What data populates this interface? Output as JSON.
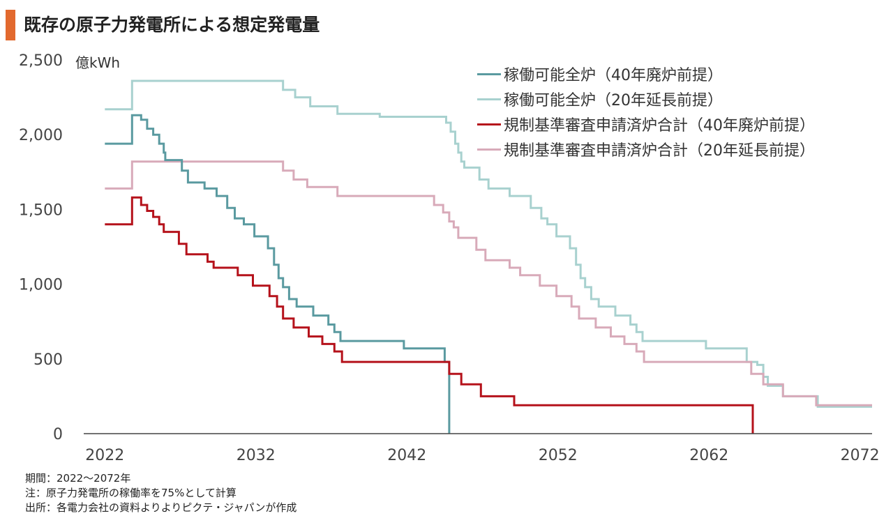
{
  "title": "既存の原子力発電所による想定発電量",
  "colors": {
    "accent": "#e2692e",
    "axis": "#444444"
  },
  "notes": [
    "期間：2022～2072年",
    "注：原子力発電所の稼働率を75%として計算",
    "出所：各電力会社の資料よりよりピクテ・ジャパンが作成"
  ],
  "chart_data": {
    "type": "line",
    "step": true,
    "unit_label": "億kWh",
    "xlim": [
      2020.6,
      2072.8
    ],
    "ylim": [
      0,
      2500
    ],
    "y_ticks": [
      0,
      500,
      1000,
      1500,
      2000,
      2500
    ],
    "y_tick_labels": [
      "0",
      "500",
      "1,000",
      "1,500",
      "2,000",
      "2,500"
    ],
    "x_ticks": [
      2022,
      2032,
      2042,
      2052,
      2062,
      2072
    ],
    "x_tick_labels": [
      "2022",
      "2032",
      "2042",
      "2052",
      "2062",
      "2072"
    ],
    "legend_position": "top-right",
    "series": [
      {
        "name": "稼働可能全炉（40年廃炉前提）",
        "color": "#5a9aa0",
        "points": [
          [
            2022,
            1940
          ],
          [
            2023.8,
            1940
          ],
          [
            2023.8,
            2130
          ],
          [
            2024.4,
            2130
          ],
          [
            2024.4,
            2100
          ],
          [
            2024.8,
            2100
          ],
          [
            2024.8,
            2040
          ],
          [
            2025.2,
            2040
          ],
          [
            2025.2,
            2000
          ],
          [
            2025.6,
            2000
          ],
          [
            2025.6,
            1940
          ],
          [
            2025.9,
            1940
          ],
          [
            2025.9,
            1880
          ],
          [
            2026,
            1880
          ],
          [
            2026,
            1830
          ],
          [
            2027.1,
            1830
          ],
          [
            2027.1,
            1760
          ],
          [
            2027.5,
            1760
          ],
          [
            2027.5,
            1680
          ],
          [
            2028.6,
            1680
          ],
          [
            2028.6,
            1640
          ],
          [
            2029.4,
            1640
          ],
          [
            2029.4,
            1590
          ],
          [
            2030.1,
            1590
          ],
          [
            2030.1,
            1510
          ],
          [
            2030.6,
            1510
          ],
          [
            2030.6,
            1440
          ],
          [
            2031.2,
            1440
          ],
          [
            2031.2,
            1400
          ],
          [
            2031.9,
            1400
          ],
          [
            2031.9,
            1320
          ],
          [
            2032.8,
            1320
          ],
          [
            2032.8,
            1240
          ],
          [
            2033.2,
            1240
          ],
          [
            2033.2,
            1130
          ],
          [
            2033.5,
            1130
          ],
          [
            2033.5,
            1040
          ],
          [
            2033.8,
            1040
          ],
          [
            2033.8,
            980
          ],
          [
            2034.2,
            980
          ],
          [
            2034.2,
            900
          ],
          [
            2034.7,
            900
          ],
          [
            2034.7,
            850
          ],
          [
            2035.8,
            850
          ],
          [
            2035.8,
            790
          ],
          [
            2036.8,
            790
          ],
          [
            2036.8,
            730
          ],
          [
            2037.2,
            730
          ],
          [
            2037.2,
            680
          ],
          [
            2037.6,
            680
          ],
          [
            2037.6,
            620
          ],
          [
            2041.8,
            620
          ],
          [
            2041.8,
            570
          ],
          [
            2044.5,
            570
          ],
          [
            2044.5,
            480
          ],
          [
            2044.8,
            480
          ],
          [
            2044.8,
            0
          ]
        ]
      },
      {
        "name": "稼働可能全炉（20年延長前提）",
        "color": "#a8d1cf",
        "points": [
          [
            2022,
            2170
          ],
          [
            2023.8,
            2170
          ],
          [
            2023.8,
            2360
          ],
          [
            2033.8,
            2360
          ],
          [
            2033.8,
            2300
          ],
          [
            2034.6,
            2300
          ],
          [
            2034.6,
            2250
          ],
          [
            2035.6,
            2250
          ],
          [
            2035.6,
            2190
          ],
          [
            2037.4,
            2190
          ],
          [
            2037.4,
            2140
          ],
          [
            2040.2,
            2140
          ],
          [
            2040.2,
            2120
          ],
          [
            2044.6,
            2120
          ],
          [
            2044.6,
            2080
          ],
          [
            2044.9,
            2080
          ],
          [
            2044.9,
            2020
          ],
          [
            2045.2,
            2020
          ],
          [
            2045.2,
            1940
          ],
          [
            2045.4,
            1940
          ],
          [
            2045.4,
            1880
          ],
          [
            2045.6,
            1880
          ],
          [
            2045.6,
            1820
          ],
          [
            2045.8,
            1820
          ],
          [
            2045.8,
            1780
          ],
          [
            2046.8,
            1780
          ],
          [
            2046.8,
            1700
          ],
          [
            2047.4,
            1700
          ],
          [
            2047.4,
            1640
          ],
          [
            2048.8,
            1640
          ],
          [
            2048.8,
            1590
          ],
          [
            2050.2,
            1590
          ],
          [
            2050.2,
            1510
          ],
          [
            2050.9,
            1510
          ],
          [
            2050.9,
            1440
          ],
          [
            2051.3,
            1440
          ],
          [
            2051.3,
            1400
          ],
          [
            2051.9,
            1400
          ],
          [
            2051.9,
            1320
          ],
          [
            2052.8,
            1320
          ],
          [
            2052.8,
            1240
          ],
          [
            2053.2,
            1240
          ],
          [
            2053.2,
            1130
          ],
          [
            2053.5,
            1130
          ],
          [
            2053.5,
            1040
          ],
          [
            2053.8,
            1040
          ],
          [
            2053.8,
            980
          ],
          [
            2054.2,
            980
          ],
          [
            2054.2,
            900
          ],
          [
            2054.7,
            900
          ],
          [
            2054.7,
            850
          ],
          [
            2055.8,
            850
          ],
          [
            2055.8,
            790
          ],
          [
            2056.8,
            790
          ],
          [
            2056.8,
            730
          ],
          [
            2057.2,
            730
          ],
          [
            2057.2,
            680
          ],
          [
            2057.6,
            680
          ],
          [
            2057.6,
            620
          ],
          [
            2061.8,
            620
          ],
          [
            2061.8,
            570
          ],
          [
            2064.5,
            570
          ],
          [
            2064.5,
            480
          ],
          [
            2065.2,
            480
          ],
          [
            2065.2,
            460
          ],
          [
            2065.6,
            460
          ],
          [
            2065.6,
            380
          ],
          [
            2065.9,
            380
          ],
          [
            2065.9,
            320
          ],
          [
            2066.9,
            320
          ],
          [
            2066.9,
            250
          ],
          [
            2069.2,
            250
          ],
          [
            2069.2,
            180
          ],
          [
            2072.8,
            180
          ]
        ]
      },
      {
        "name": "規制基準審査申請済炉合計（40年廃炉前提）",
        "color": "#b5121b",
        "points": [
          [
            2022,
            1400
          ],
          [
            2023.8,
            1400
          ],
          [
            2023.8,
            1580
          ],
          [
            2024.4,
            1580
          ],
          [
            2024.4,
            1530
          ],
          [
            2024.8,
            1530
          ],
          [
            2024.8,
            1490
          ],
          [
            2025.2,
            1490
          ],
          [
            2025.2,
            1450
          ],
          [
            2025.6,
            1450
          ],
          [
            2025.6,
            1400
          ],
          [
            2025.9,
            1400
          ],
          [
            2025.9,
            1350
          ],
          [
            2026.9,
            1350
          ],
          [
            2026.9,
            1270
          ],
          [
            2027.4,
            1270
          ],
          [
            2027.4,
            1200
          ],
          [
            2028.8,
            1200
          ],
          [
            2028.8,
            1150
          ],
          [
            2029.2,
            1150
          ],
          [
            2029.2,
            1110
          ],
          [
            2030.8,
            1110
          ],
          [
            2030.8,
            1060
          ],
          [
            2031.8,
            1060
          ],
          [
            2031.8,
            990
          ],
          [
            2032.9,
            990
          ],
          [
            2032.9,
            920
          ],
          [
            2033.4,
            920
          ],
          [
            2033.4,
            850
          ],
          [
            2033.8,
            850
          ],
          [
            2033.8,
            770
          ],
          [
            2034.5,
            770
          ],
          [
            2034.5,
            710
          ],
          [
            2035.5,
            710
          ],
          [
            2035.5,
            650
          ],
          [
            2036.4,
            650
          ],
          [
            2036.4,
            600
          ],
          [
            2037.2,
            600
          ],
          [
            2037.2,
            550
          ],
          [
            2037.7,
            550
          ],
          [
            2037.7,
            480
          ],
          [
            2044.8,
            480
          ],
          [
            2044.8,
            400
          ],
          [
            2045.6,
            400
          ],
          [
            2045.6,
            330
          ],
          [
            2046.9,
            330
          ],
          [
            2046.9,
            250
          ],
          [
            2049.1,
            250
          ],
          [
            2049.1,
            190
          ],
          [
            2064.9,
            190
          ],
          [
            2064.9,
            0
          ]
        ]
      },
      {
        "name": "規制基準審査申請済炉合計（20年延長前提）",
        "color": "#d8aab9",
        "points": [
          [
            2022,
            1640
          ],
          [
            2023.8,
            1640
          ],
          [
            2023.8,
            1820
          ],
          [
            2033.8,
            1820
          ],
          [
            2033.8,
            1760
          ],
          [
            2034.5,
            1760
          ],
          [
            2034.5,
            1700
          ],
          [
            2035.4,
            1700
          ],
          [
            2035.4,
            1650
          ],
          [
            2037.4,
            1650
          ],
          [
            2037.4,
            1590
          ],
          [
            2043.8,
            1590
          ],
          [
            2043.8,
            1530
          ],
          [
            2044.4,
            1530
          ],
          [
            2044.4,
            1480
          ],
          [
            2044.8,
            1480
          ],
          [
            2044.8,
            1420
          ],
          [
            2045.1,
            1420
          ],
          [
            2045.1,
            1380
          ],
          [
            2045.4,
            1380
          ],
          [
            2045.4,
            1310
          ],
          [
            2046.6,
            1310
          ],
          [
            2046.6,
            1230
          ],
          [
            2047.2,
            1230
          ],
          [
            2047.2,
            1160
          ],
          [
            2048.8,
            1160
          ],
          [
            2048.8,
            1110
          ],
          [
            2049.5,
            1110
          ],
          [
            2049.5,
            1060
          ],
          [
            2050.8,
            1060
          ],
          [
            2050.8,
            990
          ],
          [
            2051.9,
            990
          ],
          [
            2051.9,
            920
          ],
          [
            2052.9,
            920
          ],
          [
            2052.9,
            850
          ],
          [
            2053.4,
            850
          ],
          [
            2053.4,
            770
          ],
          [
            2054.5,
            770
          ],
          [
            2054.5,
            710
          ],
          [
            2055.5,
            710
          ],
          [
            2055.5,
            650
          ],
          [
            2056.4,
            650
          ],
          [
            2056.4,
            600
          ],
          [
            2057.2,
            600
          ],
          [
            2057.2,
            550
          ],
          [
            2057.7,
            550
          ],
          [
            2057.7,
            480
          ],
          [
            2064.8,
            480
          ],
          [
            2064.8,
            400
          ],
          [
            2065.6,
            400
          ],
          [
            2065.6,
            330
          ],
          [
            2066.9,
            330
          ],
          [
            2066.9,
            250
          ],
          [
            2069.1,
            250
          ],
          [
            2069.1,
            190
          ],
          [
            2072.8,
            190
          ]
        ]
      }
    ]
  }
}
